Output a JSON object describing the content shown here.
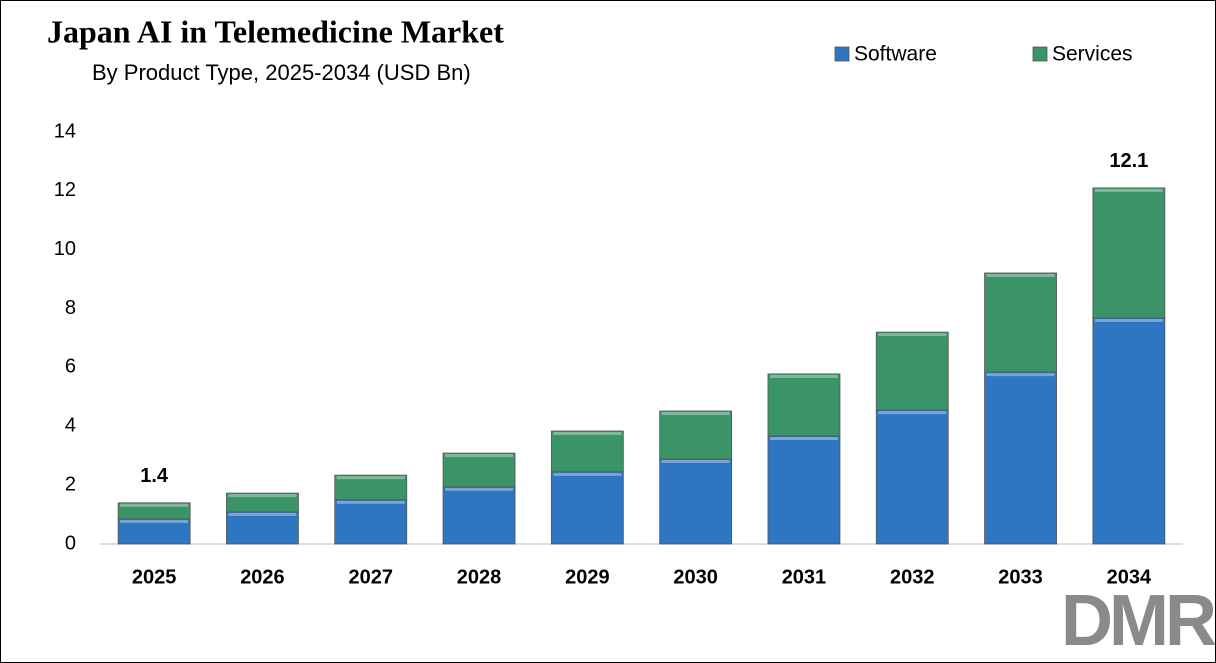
{
  "chart_data": {
    "type": "stacked_bar",
    "title": "Japan AI in Telemedicine Market",
    "subtitle": "By Product Type, 2025-2034 (USD Bn)",
    "categories": [
      "2025",
      "2026",
      "2027",
      "2028",
      "2029",
      "2030",
      "2031",
      "2032",
      "2033",
      "2034"
    ],
    "series": [
      {
        "name": "Software",
        "color": "#2e75c2",
        "values": [
          0.85,
          1.09,
          1.5,
          1.94,
          2.45,
          2.89,
          3.67,
          4.55,
          5.84,
          7.68
        ]
      },
      {
        "name": "Services",
        "color": "#3a9468",
        "values": [
          0.55,
          0.64,
          0.84,
          1.15,
          1.39,
          1.63,
          2.11,
          2.65,
          3.37,
          4.42
        ]
      }
    ],
    "annotations": [
      {
        "category": "2025",
        "value": 1.4
      },
      {
        "category": "2034",
        "value": 12.1
      }
    ],
    "ylim": [
      0,
      14
    ],
    "yticks": [
      0,
      2,
      4,
      6,
      8,
      10,
      12,
      14
    ],
    "grid": false,
    "legend": "top-right",
    "logo": "DMR"
  }
}
